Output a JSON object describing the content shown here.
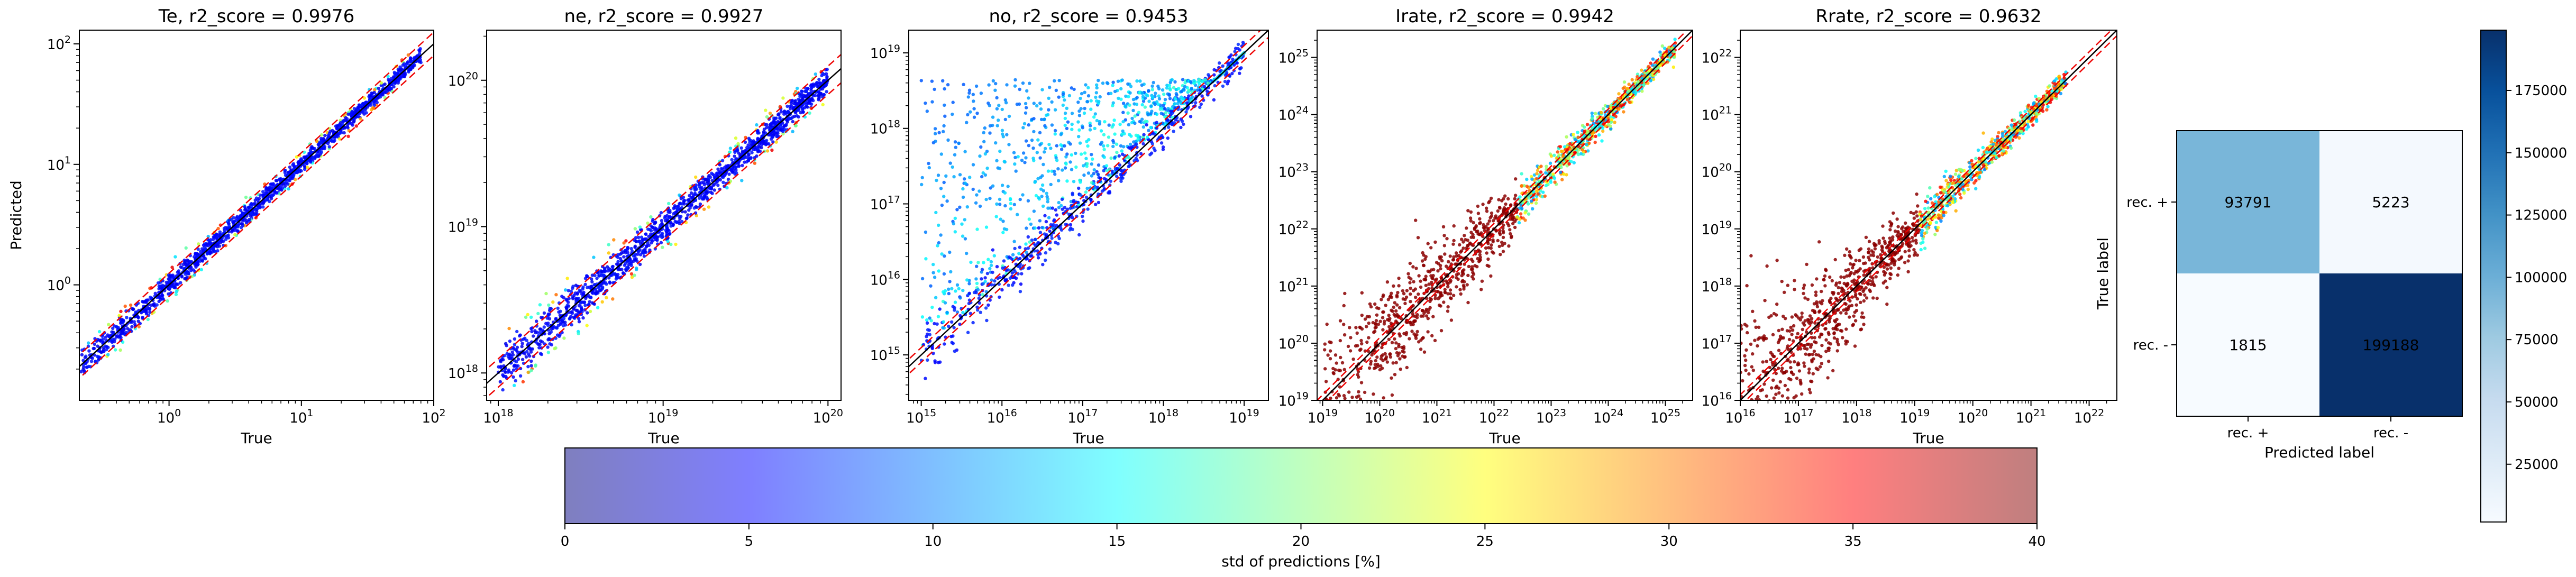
{
  "chart_data": [
    {
      "type": "scatter",
      "title": "Te, r2_score = 0.9976",
      "xlabel": "True",
      "ylabel": "Predicted",
      "xscale": "log",
      "yscale": "log",
      "xlim": [
        0.21,
        100
      ],
      "ylim": [
        0.11,
        130
      ],
      "xticks": [
        {
          "v": 1,
          "b": "10",
          "e": "0"
        },
        {
          "v": 10,
          "b": "10",
          "e": "1"
        },
        {
          "v": 100,
          "b": "10",
          "e": "2"
        }
      ],
      "yticks": [
        {
          "v": 1,
          "b": "10",
          "e": "0"
        },
        {
          "v": 10,
          "b": "10",
          "e": "1"
        },
        {
          "v": 100,
          "b": "10",
          "e": "2"
        }
      ],
      "data_range": [
        0.21,
        80
      ],
      "spread": 0.035,
      "lower_spread_scale": 1.0,
      "point_color": "#00008b",
      "reference_lines": {
        "identity": "black solid",
        "bounds": "red dashed",
        "bound_factor": 0.8
      }
    },
    {
      "type": "scatter",
      "title": "ne, r2_score = 0.9927",
      "xlabel": "True",
      "ylabel": "",
      "xscale": "log",
      "yscale": "log",
      "xlim": [
        8.5e+17,
        1.2e+20
      ],
      "ylim": [
        6.5e+17,
        2.2e+20
      ],
      "xticks": [
        {
          "v": 1e+18,
          "b": "10",
          "e": "18"
        },
        {
          "v": 1e+19,
          "b": "10",
          "e": "19"
        },
        {
          "v": 1e+20,
          "b": "10",
          "e": "20"
        }
      ],
      "yticks": [
        {
          "v": 1e+18,
          "b": "10",
          "e": "18"
        },
        {
          "v": 1e+19,
          "b": "10",
          "e": "19"
        },
        {
          "v": 1e+20,
          "b": "10",
          "e": "20"
        }
      ],
      "data_range": [
        1e+18,
        1e+20
      ],
      "spread": 0.05,
      "lower_spread_scale": 1.0,
      "point_color": "#00008b",
      "reference_lines": {
        "identity": "black solid",
        "bounds": "red dashed",
        "bound_factor": 0.8
      }
    },
    {
      "type": "scatter",
      "title": "no, r2_score = 0.9453",
      "xlabel": "True",
      "ylabel": "",
      "xscale": "log",
      "yscale": "log",
      "xlim": [
        700000000000000.0,
        2e+19
      ],
      "ylim": [
        250000000000000.0,
        2e+19
      ],
      "xticks": [
        {
          "v": 1000000000000000.0,
          "b": "10",
          "e": "15"
        },
        {
          "v": 1e+16,
          "b": "10",
          "e": "16"
        },
        {
          "v": 1e+17,
          "b": "10",
          "e": "17"
        },
        {
          "v": 1e+18,
          "b": "10",
          "e": "18"
        },
        {
          "v": 1e+19,
          "b": "10",
          "e": "19"
        }
      ],
      "yticks": [
        {
          "v": 1000000000000000.0,
          "b": "10",
          "e": "15"
        },
        {
          "v": 1e+16,
          "b": "10",
          "e": "16"
        },
        {
          "v": 1e+17,
          "b": "10",
          "e": "17"
        },
        {
          "v": 1e+18,
          "b": "10",
          "e": "18"
        },
        {
          "v": 1e+19,
          "b": "10",
          "e": "19"
        }
      ],
      "data_range": [
        1000000000000000.0,
        1e+19
      ],
      "spread": 0.1,
      "lower_spread_scale": 1.0,
      "point_color": "#0033ff",
      "ceiling": 4.5e+18,
      "reference_lines": {
        "identity": "black solid",
        "bounds": "red dashed",
        "bound_factor": 0.8
      }
    },
    {
      "type": "scatter",
      "title": "Irate, r2_score = 0.9942",
      "xlabel": "True",
      "ylabel": "",
      "xscale": "log",
      "yscale": "log",
      "xlim": [
        8e+18,
        3e+25
      ],
      "ylim": [
        1e+19,
        3e+25
      ],
      "xticks": [
        {
          "v": 1e+19,
          "b": "10",
          "e": "19"
        },
        {
          "v": 1e+20,
          "b": "10",
          "e": "20"
        },
        {
          "v": 1e+21,
          "b": "10",
          "e": "21"
        },
        {
          "v": 1e+22,
          "b": "10",
          "e": "22"
        },
        {
          "v": 1e+23,
          "b": "10",
          "e": "23"
        },
        {
          "v": 1e+24,
          "b": "10",
          "e": "24"
        },
        {
          "v": 1e+25,
          "b": "10",
          "e": "25"
        }
      ],
      "yticks": [
        {
          "v": 1e+19,
          "b": "10",
          "e": "19"
        },
        {
          "v": 1e+20,
          "b": "10",
          "e": "20"
        },
        {
          "v": 1e+21,
          "b": "10",
          "e": "21"
        },
        {
          "v": 1e+22,
          "b": "10",
          "e": "22"
        },
        {
          "v": 1e+23,
          "b": "10",
          "e": "23"
        },
        {
          "v": 1e+24,
          "b": "10",
          "e": "24"
        },
        {
          "v": 1e+25,
          "b": "10",
          "e": "25"
        }
      ],
      "data_range": [
        1e+19,
        1.5e+25
      ],
      "spread": 0.08,
      "lower_spread_scale": 8,
      "point_color": "#8b0000",
      "reference_lines": {
        "identity": "black solid",
        "bounds": "red dashed",
        "bound_factor": 0.8
      }
    },
    {
      "type": "scatter",
      "title": "Rrate, r2_score = 0.9632",
      "xlabel": "True",
      "ylabel": "",
      "xscale": "log",
      "yscale": "log",
      "xlim": [
        1e+16,
        3e+22
      ],
      "ylim": [
        1e+16,
        3e+22
      ],
      "xticks": [
        {
          "v": 1e+16,
          "b": "10",
          "e": "16"
        },
        {
          "v": 1e+17,
          "b": "10",
          "e": "17"
        },
        {
          "v": 1e+18,
          "b": "10",
          "e": "18"
        },
        {
          "v": 1e+19,
          "b": "10",
          "e": "19"
        },
        {
          "v": 1e+20,
          "b": "10",
          "e": "20"
        },
        {
          "v": 1e+21,
          "b": "10",
          "e": "21"
        },
        {
          "v": 1e+22,
          "b": "10",
          "e": "22"
        }
      ],
      "yticks": [
        {
          "v": 1e+16,
          "b": "10",
          "e": "16"
        },
        {
          "v": 1e+17,
          "b": "10",
          "e": "17"
        },
        {
          "v": 1e+18,
          "b": "10",
          "e": "18"
        },
        {
          "v": 1e+19,
          "b": "10",
          "e": "19"
        },
        {
          "v": 1e+20,
          "b": "10",
          "e": "20"
        },
        {
          "v": 1e+21,
          "b": "10",
          "e": "21"
        },
        {
          "v": 1e+22,
          "b": "10",
          "e": "22"
        }
      ],
      "data_range": [
        1e+16,
        4e+21
      ],
      "spread": 0.08,
      "lower_spread_scale": 9,
      "point_color": "#8b0000",
      "reference_lines": {
        "identity": "black solid",
        "bounds": "red dashed",
        "bound_factor": 0.8
      }
    },
    {
      "type": "heatmap",
      "subtype": "confusion_matrix",
      "xlabel": "Predicted label",
      "ylabel": "True label",
      "labels": [
        "rec. +",
        "rec. -"
      ],
      "matrix": [
        [
          93791,
          5223
        ],
        [
          1815,
          199188
        ]
      ],
      "colormap": "Blues",
      "colorbar": {
        "min": 1815,
        "max": 199188,
        "ticks": [
          25000,
          50000,
          75000,
          100000,
          125000,
          150000,
          175000
        ]
      }
    }
  ],
  "colorbar": {
    "label": "std of predictions [%]",
    "colormap": "jet",
    "alpha": 0.5,
    "min": 0,
    "max": 40,
    "ticks": [
      0,
      5,
      10,
      15,
      20,
      25,
      30,
      35,
      40
    ]
  }
}
